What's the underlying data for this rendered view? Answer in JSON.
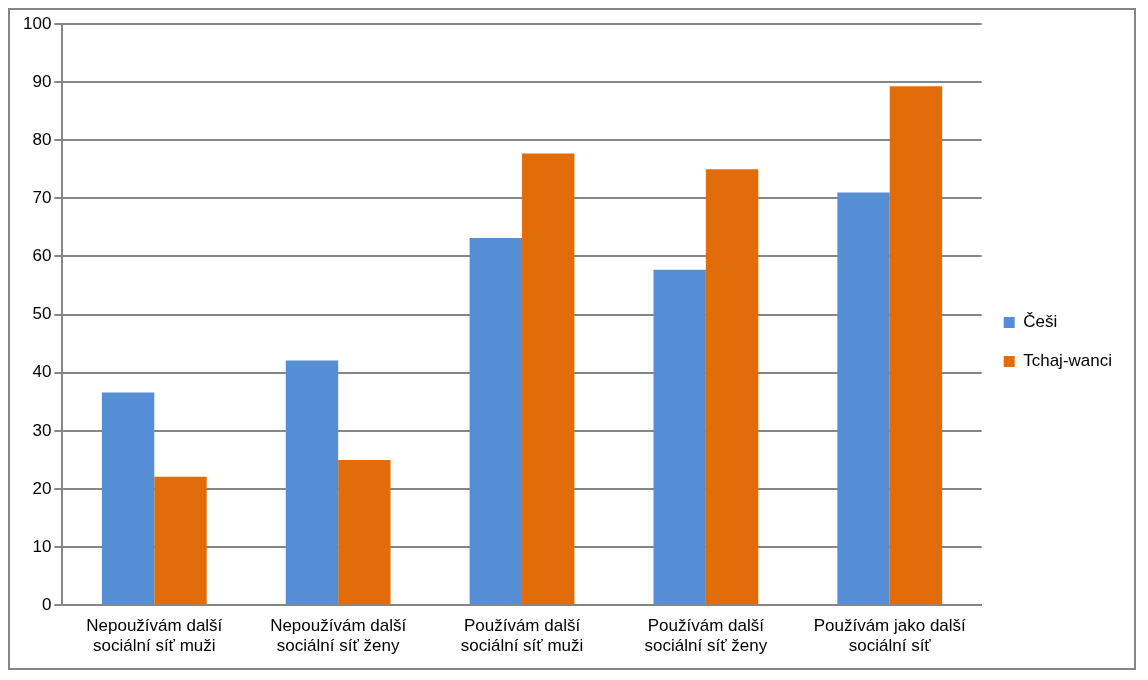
{
  "chart_data": {
    "type": "bar",
    "categories": [
      "Nepoužívám další sociální síť muži",
      "Nepoužívám další sociální síť ženy",
      "Používám další sociální síť muži",
      "Používám další sociální síť ženy",
      "Používám jako další sociální síť"
    ],
    "series": [
      {
        "name": "Češi",
        "color": "#558ed5",
        "values": [
          36.6,
          42.1,
          63.2,
          57.7,
          71.0
        ]
      },
      {
        "name": "Tchaj-wanci",
        "color": "#e36c0a",
        "values": [
          22.1,
          25.0,
          77.7,
          75.0,
          89.3
        ]
      }
    ],
    "ylim": [
      0,
      100
    ],
    "yticks": [
      0,
      10,
      20,
      30,
      40,
      50,
      60,
      70,
      80,
      90,
      100
    ],
    "grid": "y",
    "legend": "right"
  }
}
